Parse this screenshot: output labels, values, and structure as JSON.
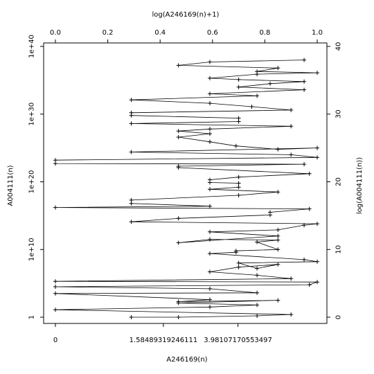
{
  "chart_data": {
    "type": "line",
    "title": "",
    "xlabel_bottom": "A246169(n)",
    "xlabel_top": "log(A246169(n)+1)",
    "ylabel_left": "A004111(n)",
    "ylabel_right": "log(A004111(n))",
    "xlim_top": [
      0,
      1
    ],
    "ylim_right": [
      0,
      40
    ],
    "grid": false,
    "legend": "none",
    "line_color": "#000000",
    "marker": "+",
    "top_ticks": [
      "0.0",
      "0.2",
      "0.4",
      "0.6",
      "0.8",
      "1.0"
    ],
    "right_ticks": [
      "0",
      "10",
      "20",
      "30",
      "40"
    ],
    "bottom_ticks": [
      "0",
      "1.58489319246111",
      "3.98107170553497"
    ],
    "left_ticks": [
      "1",
      "1e+10",
      "1e+20",
      "1e+30",
      "1e+40"
    ],
    "series": [
      {
        "x_log": [
          0.29,
          0.47,
          0.77,
          0.9,
          0.0,
          0.59,
          0.77,
          0.47,
          0.85,
          0.47,
          0.59,
          0.0,
          0.77,
          0.59,
          0.0,
          0.97,
          1.0,
          0.0,
          0.9,
          0.77,
          0.59,
          0.7,
          0.85,
          0.77,
          0.7,
          1.0,
          0.95,
          0.59,
          0.69,
          0.69,
          0.85,
          0.77,
          0.85,
          0.59,
          0.47,
          0.85,
          0.59,
          0.85,
          0.95,
          1.0,
          0.29,
          0.47,
          0.82,
          0.82,
          0.97,
          0.0,
          0.59,
          0.29,
          0.29,
          0.7,
          0.85,
          0.59,
          0.7,
          0.7,
          0.59,
          0.59,
          0.7,
          0.97,
          0.47,
          0.47,
          0.95,
          0.0,
          0.0,
          1.0,
          0.9,
          0.29,
          1.0,
          0.85,
          0.69,
          0.59,
          0.47,
          0.59,
          0.47,
          0.59,
          0.9,
          0.29,
          0.7,
          0.7,
          0.29,
          0.29,
          0.9,
          0.75,
          0.59,
          0.29,
          0.77,
          0.59,
          0.95,
          0.7,
          0.82,
          0.95,
          0.7,
          0.59,
          0.77,
          1.0,
          0.77,
          0.85,
          0.47,
          0.59,
          0.95
        ],
        "y_log": [
          0.0,
          0.0,
          0.2,
          0.4,
          1.1,
          1.5,
          1.8,
          2.1,
          2.5,
          2.3,
          2.6,
          3.5,
          3.6,
          4.2,
          4.5,
          4.8,
          5.2,
          5.3,
          5.7,
          6.2,
          6.7,
          7.4,
          7.8,
          7.2,
          8.0,
          8.2,
          8.5,
          9.4,
          9.6,
          9.8,
          10.0,
          11.1,
          11.4,
          11.5,
          11.0,
          12.0,
          12.6,
          12.9,
          13.6,
          13.8,
          14.1,
          14.6,
          15.1,
          15.5,
          16.0,
          16.2,
          16.4,
          16.8,
          17.3,
          18.0,
          18.5,
          18.9,
          19.2,
          19.8,
          19.9,
          20.3,
          20.7,
          21.2,
          22.1,
          22.3,
          22.6,
          22.7,
          23.2,
          23.6,
          24.0,
          24.4,
          25.0,
          24.8,
          25.3,
          25.9,
          26.6,
          27.1,
          27.5,
          27.8,
          28.2,
          28.6,
          28.9,
          29.4,
          29.8,
          30.2,
          30.6,
          31.1,
          31.6,
          32.1,
          32.7,
          33.0,
          33.6,
          34.0,
          34.5,
          34.8,
          35.1,
          35.3,
          35.9,
          36.1,
          36.3,
          36.8,
          37.2,
          37.7,
          38.0
        ]
      }
    ]
  }
}
